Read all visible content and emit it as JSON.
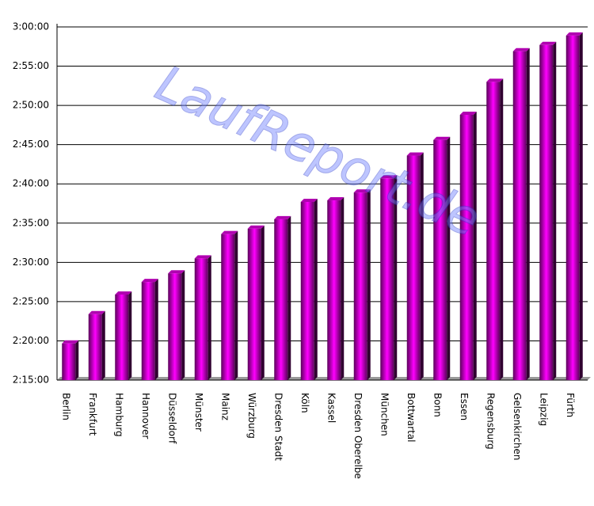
{
  "chart_data": {
    "type": "bar",
    "watermark": "LaufReport.de",
    "categories": [
      "Berlin",
      "Frankfurt",
      "Hamburg",
      "Hannover",
      "Düsseldorf",
      "Münster",
      "Mainz",
      "Würzburg",
      "Dresden Stadt",
      "Köln",
      "Kassel",
      "Dresden Oberelbe",
      "München",
      "Bottwartal",
      "Bonn",
      "Essen",
      "Regensburg",
      "Gelsenkirchen",
      "Leipzig",
      "Fürth"
    ],
    "values": [
      8380,
      8604,
      8754,
      8850,
      8916,
      9030,
      9216,
      9258,
      9330,
      9462,
      9474,
      9534,
      9642,
      9816,
      9936,
      10128,
      10380,
      10614,
      10662,
      10734
    ],
    "color": "#ff00ff",
    "ylim": [
      8100,
      10800
    ],
    "yticks": [
      {
        "value": 8100,
        "label": "2:15:00"
      },
      {
        "value": 8400,
        "label": "2:20:00"
      },
      {
        "value": 8700,
        "label": "2:25:00"
      },
      {
        "value": 9000,
        "label": "2:30:00"
      },
      {
        "value": 9300,
        "label": "2:35:00"
      },
      {
        "value": 9600,
        "label": "2:40:00"
      },
      {
        "value": 9900,
        "label": "2:45:00"
      },
      {
        "value": 10200,
        "label": "2:50:00"
      },
      {
        "value": 10500,
        "label": "2:55:00"
      },
      {
        "value": 10800,
        "label": "3:00:00"
      }
    ],
    "grid": true
  }
}
